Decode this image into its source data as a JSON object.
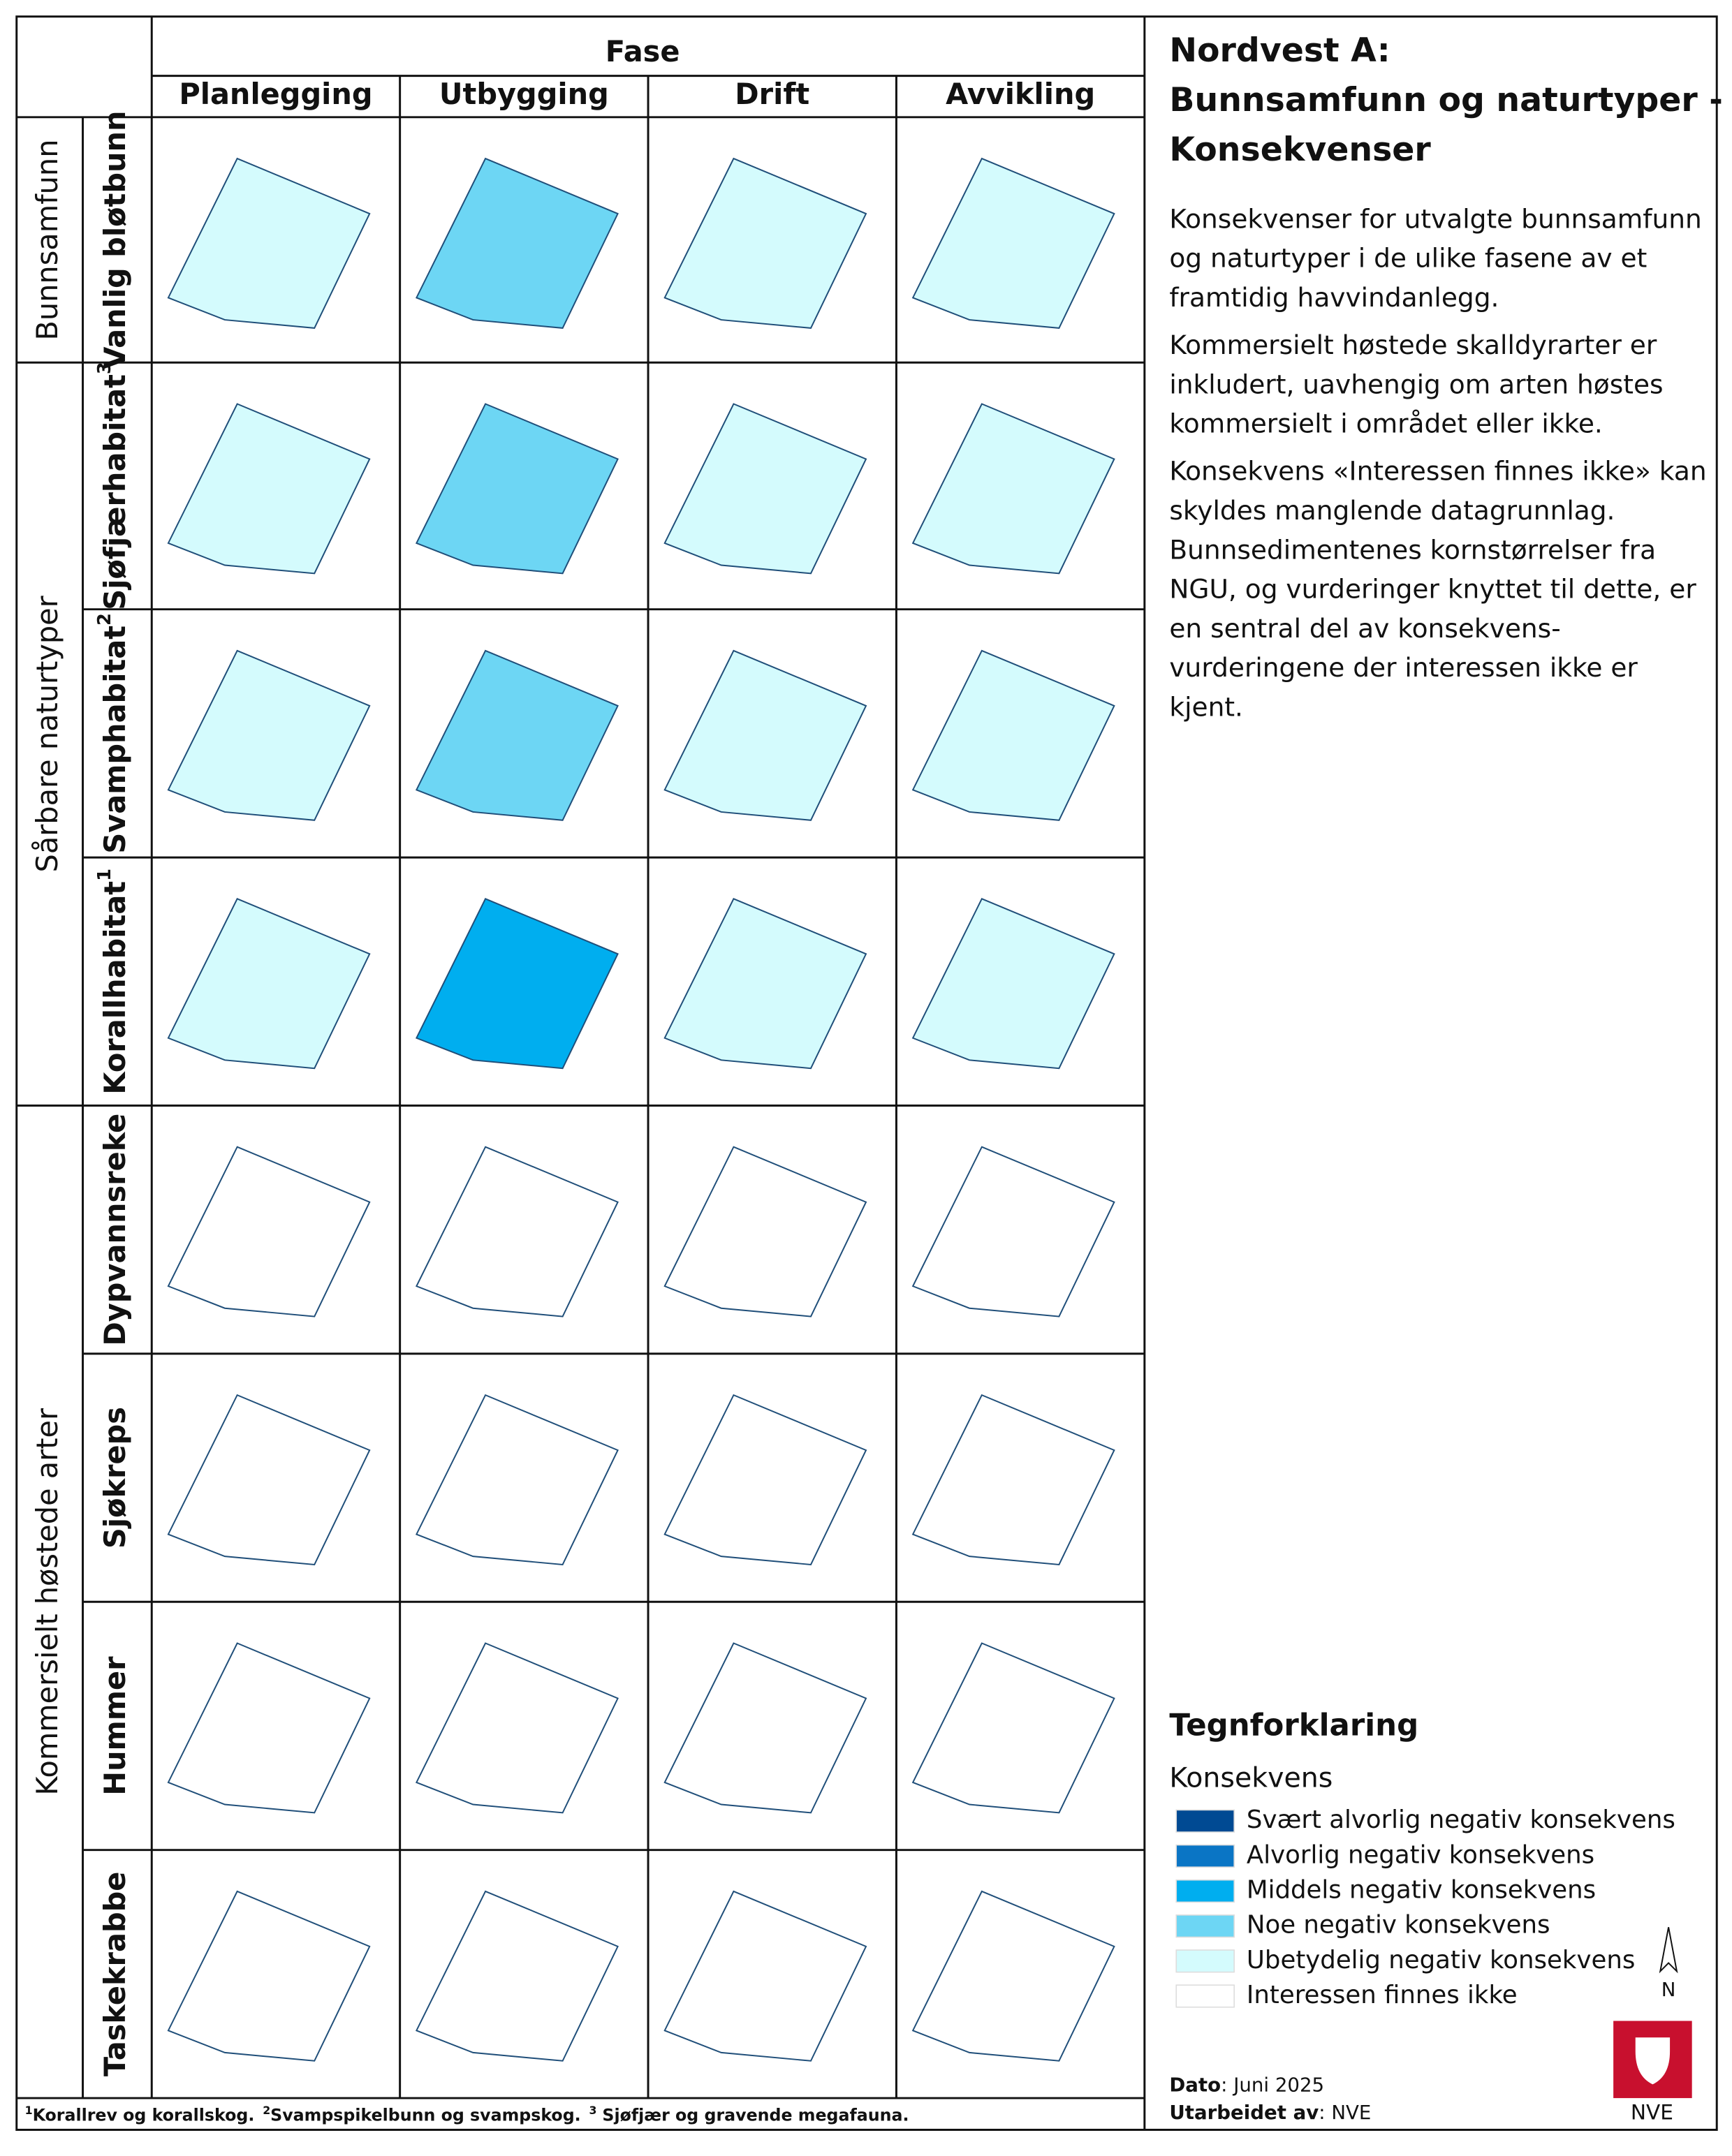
{
  "header": {
    "fase": "Fase",
    "phases": [
      "Planlegging",
      "Utbygging",
      "Drift",
      "Avvikling"
    ]
  },
  "groups": [
    {
      "label": "Bunnsamfunn",
      "rows": [
        {
          "label": "Vanlig bløtbunn",
          "cells": [
            "#d4fbfd",
            "#6dd6f4",
            "#d4fbfd",
            "#d4fbfd"
          ]
        }
      ]
    },
    {
      "label": "Sårbare naturtyper",
      "rows": [
        {
          "label": "Sjøfjærhabitat",
          "sup": "3",
          "cells": [
            "#d4fbfd",
            "#6dd6f4",
            "#d4fbfd",
            "#d4fbfd"
          ]
        },
        {
          "label": "Svamphabitat",
          "sup": "2",
          "cells": [
            "#d4fbfd",
            "#6dd6f4",
            "#d4fbfd",
            "#d4fbfd"
          ]
        },
        {
          "label": "Korallhabitat",
          "sup": "1",
          "cells": [
            "#d4fbfd",
            "#00aeef",
            "#d4fbfd",
            "#d4fbfd"
          ]
        }
      ]
    },
    {
      "label": "Kommersielt høstede arter",
      "rows": [
        {
          "label": "Dypvannsreke",
          "cells": [
            "#ffffff",
            "#ffffff",
            "#ffffff",
            "#ffffff"
          ]
        },
        {
          "label": "Sjøkreps",
          "cells": [
            "#ffffff",
            "#ffffff",
            "#ffffff",
            "#ffffff"
          ]
        },
        {
          "label": "Hummer",
          "cells": [
            "#ffffff",
            "#ffffff",
            "#ffffff",
            "#ffffff"
          ]
        },
        {
          "label": "Taskekrabbe",
          "cells": [
            "#ffffff",
            "#ffffff",
            "#ffffff",
            "#ffffff"
          ]
        }
      ]
    }
  ],
  "panel": {
    "title": [
      "Nordvest A:",
      "Bunnsamfunn og naturtyper -",
      "Konsekvenser"
    ],
    "paragraphs": [
      [
        "Konsekvenser for utvalgte bunnsamfunn",
        "og naturtyper i de ulike fasene av et",
        "framtidig havvindanlegg."
      ],
      [
        "Kommersielt høstede skalldyrarter er",
        "inkludert, uavhengig om arten høstes",
        "kommersielt i området eller ikke."
      ],
      [
        "Konsekvens «Interessen finnes ikke» kan",
        "skyldes manglende datagrunnlag.",
        "Bunnsedimentenes kornstørrelser fra",
        "NGU, og vurderinger knyttet til dette, er",
        "en sentral del av konsekvens-",
        "vurderingene der interessen ikke er",
        "kjent."
      ]
    ]
  },
  "legend": {
    "title": "Tegnforklaring",
    "subtitle": "Konsekvens",
    "items": [
      {
        "label": "Svært alvorlig negativ konsekvens",
        "color": "#004a93"
      },
      {
        "label": "Alvorlig negativ konsekvens",
        "color": "#0a75c5"
      },
      {
        "label": "Middels negativ konsekvens",
        "color": "#00aeef"
      },
      {
        "label": "Noe negativ konsekvens",
        "color": "#6dd6f4"
      },
      {
        "label": "Ubetydelig negativ konsekvens",
        "color": "#d4fbfd"
      },
      {
        "label": "Interessen finnes ikke",
        "color": "#ffffff"
      }
    ]
  },
  "footnotes": [
    {
      "mark": "1",
      "text": "Korallrev og korallskog."
    },
    {
      "mark": "2",
      "text": "Svampspikelbunn og svampskog."
    },
    {
      "mark": "3",
      "text": "Sjøfjær og gravende megafauna."
    }
  ],
  "credits": [
    {
      "label": "Dato",
      "value": ": Juni 2025"
    },
    {
      "label": "Utarbeidet av",
      "value": ": NVE"
    }
  ],
  "north": "N",
  "logo": "NVE"
}
